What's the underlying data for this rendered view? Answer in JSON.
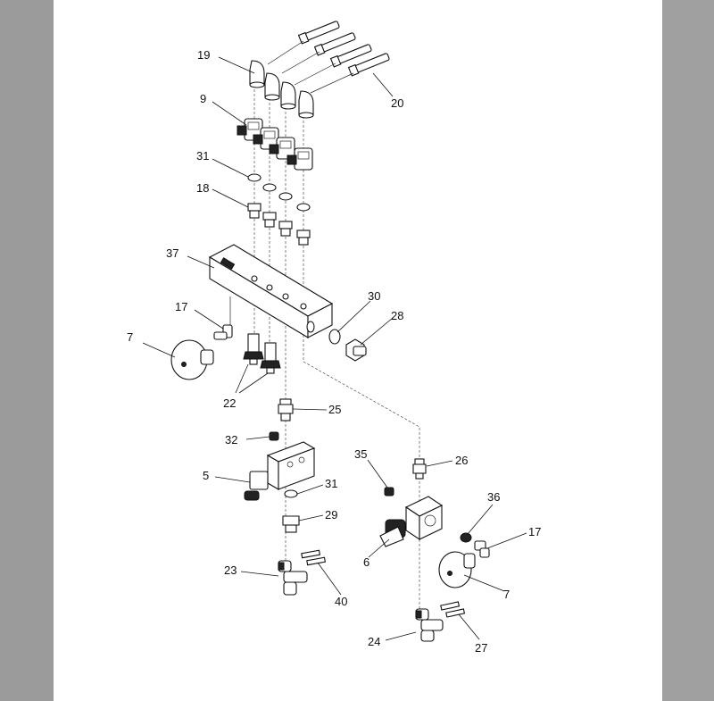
{
  "diagram": {
    "callouts": [
      {
        "id": "c19",
        "label": "19"
      },
      {
        "id": "c20",
        "label": "20"
      },
      {
        "id": "c9",
        "label": "9"
      },
      {
        "id": "c31a",
        "label": "31"
      },
      {
        "id": "c18",
        "label": "18"
      },
      {
        "id": "c37",
        "label": "37"
      },
      {
        "id": "c30",
        "label": "30"
      },
      {
        "id": "c28",
        "label": "28"
      },
      {
        "id": "c17a",
        "label": "17"
      },
      {
        "id": "c7a",
        "label": "7"
      },
      {
        "id": "c22",
        "label": "22"
      },
      {
        "id": "c25",
        "label": "25"
      },
      {
        "id": "c32",
        "label": "32"
      },
      {
        "id": "c35",
        "label": "35"
      },
      {
        "id": "c26",
        "label": "26"
      },
      {
        "id": "c5",
        "label": "5"
      },
      {
        "id": "c31b",
        "label": "31"
      },
      {
        "id": "c36",
        "label": "36"
      },
      {
        "id": "c29",
        "label": "29"
      },
      {
        "id": "c17b",
        "label": "17"
      },
      {
        "id": "c6",
        "label": "6"
      },
      {
        "id": "c23",
        "label": "23"
      },
      {
        "id": "c7b",
        "label": "7"
      },
      {
        "id": "c40",
        "label": "40"
      },
      {
        "id": "c24",
        "label": "24"
      },
      {
        "id": "c27",
        "label": "27"
      }
    ]
  }
}
